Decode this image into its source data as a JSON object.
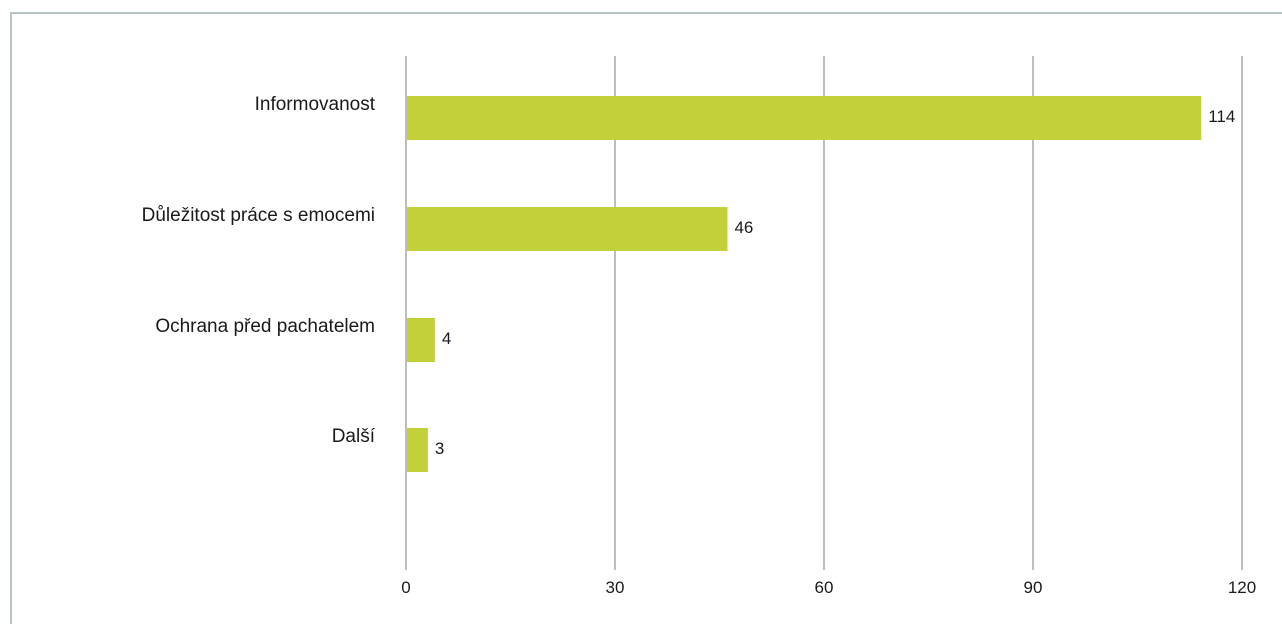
{
  "chart_data": {
    "type": "bar",
    "orientation": "horizontal",
    "categories": [
      "Informovanost",
      "Důležitost práce s emocemi",
      "Ochrana před pachatelem",
      "Další"
    ],
    "values": [
      114,
      46,
      4,
      3
    ],
    "data_labels": [
      "114",
      "46",
      "4",
      "3"
    ],
    "xlim": [
      0,
      120
    ],
    "xticks": [
      0,
      30,
      60,
      90,
      120
    ],
    "xtick_labels": [
      "0",
      "30",
      "60",
      "90",
      "120"
    ],
    "title": "",
    "xlabel": "",
    "ylabel": "",
    "grid": "vertical",
    "legend": "none",
    "bar_color": "#c2d13a",
    "grid_color": "#9a9a9a"
  }
}
